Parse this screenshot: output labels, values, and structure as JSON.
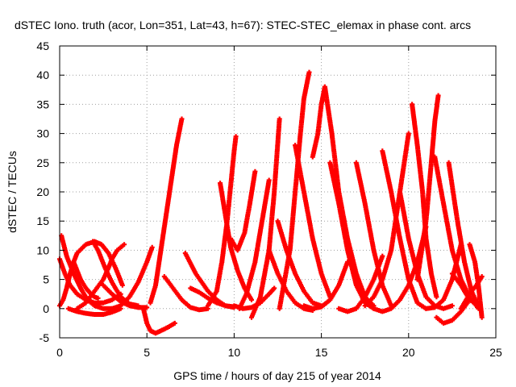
{
  "chart_data": {
    "type": "scatter",
    "title": "dSTEC Iono. truth (acor, Lon=351, Lat=43, h=67): STEC-STEC_elemax in phase cont. arcs",
    "xlabel": "GPS time / hours of day 215 of year 2014",
    "ylabel": "dSTEC  / TECUs",
    "xlim": [
      0,
      25
    ],
    "ylim": [
      -5,
      45
    ],
    "x_ticks": [
      0,
      5,
      10,
      15,
      20,
      25
    ],
    "y_ticks": [
      -5,
      0,
      5,
      10,
      15,
      20,
      25,
      30,
      35,
      40,
      45
    ],
    "grid": true,
    "legend": "none",
    "marker": "+",
    "series_color": "#ff0000",
    "series": [
      {
        "x": [
          0.0,
          0.2,
          0.4,
          0.6,
          0.8,
          1.0,
          1.5,
          2.0,
          2.4,
          2.8,
          3.2,
          3.6
        ],
        "y": [
          0.5,
          1.5,
          3.5,
          6.0,
          8.0,
          9.5,
          11.0,
          11.5,
          11.0,
          9.5,
          7.0,
          4.0
        ]
      },
      {
        "x": [
          0.0,
          0.3,
          0.6,
          1.0,
          1.5,
          2.0,
          2.5,
          3.0,
          3.5
        ],
        "y": [
          8.5,
          6.0,
          4.0,
          2.5,
          1.5,
          1.0,
          1.0,
          1.5,
          2.5
        ]
      },
      {
        "x": [
          0.1,
          0.4,
          0.8,
          1.2,
          1.6,
          2.0,
          2.5,
          3.0
        ],
        "y": [
          12.5,
          9.0,
          6.0,
          3.5,
          1.5,
          0.5,
          0.0,
          0.0
        ]
      },
      {
        "x": [
          0.5,
          1.0,
          1.5,
          2.0,
          2.5,
          3.0,
          3.5
        ],
        "y": [
          0.0,
          -0.5,
          -0.8,
          -1.0,
          -1.0,
          -0.6,
          0.0
        ]
      },
      {
        "x": [
          0.8,
          1.0,
          1.2,
          1.5,
          1.8,
          2.0,
          2.2
        ],
        "y": [
          8.0,
          6.5,
          5.0,
          3.5,
          2.5,
          2.0,
          1.8
        ]
      },
      {
        "x": [
          1.0,
          1.5,
          2.0,
          2.5,
          2.8,
          3.0,
          3.3,
          3.7
        ],
        "y": [
          0.0,
          1.0,
          3.0,
          5.0,
          7.0,
          8.5,
          10.0,
          11.0
        ]
      },
      {
        "x": [
          1.9,
          2.2,
          2.6,
          3.0,
          3.5,
          4.0,
          4.5
        ],
        "y": [
          11.5,
          10.0,
          7.0,
          4.5,
          2.0,
          0.8,
          0.5
        ]
      },
      {
        "x": [
          2.5,
          3.0,
          3.5,
          4.0,
          4.5,
          5.0
        ],
        "y": [
          4.0,
          2.5,
          1.2,
          0.5,
          0.2,
          0.2
        ]
      },
      {
        "x": [
          3.0,
          3.5,
          4.0,
          4.5,
          5.0,
          5.3
        ],
        "y": [
          0.0,
          0.5,
          2.0,
          4.5,
          8.0,
          10.5
        ]
      },
      {
        "x": [
          4.8,
          5.0,
          5.2,
          5.5,
          5.8,
          6.2,
          6.6
        ],
        "y": [
          0.0,
          -2.5,
          -3.8,
          -4.2,
          -3.8,
          -3.2,
          -2.5
        ]
      },
      {
        "x": [
          5.2,
          5.5,
          5.8,
          6.1,
          6.4,
          6.7,
          7.0
        ],
        "y": [
          1.0,
          4.0,
          10.0,
          16.0,
          22.0,
          28.0,
          32.5
        ]
      },
      {
        "x": [
          6.0,
          6.5,
          7.0,
          7.5,
          8.0,
          8.5
        ],
        "y": [
          5.5,
          3.5,
          1.5,
          0.2,
          -0.2,
          0.0
        ]
      },
      {
        "x": [
          7.2,
          7.8,
          8.5,
          9.0,
          9.5,
          10.0
        ],
        "y": [
          9.5,
          6.0,
          3.0,
          1.5,
          0.5,
          0.3
        ]
      },
      {
        "x": [
          7.5,
          8.0,
          8.5,
          9.0,
          9.5,
          10.0
        ],
        "y": [
          3.5,
          2.8,
          1.8,
          1.0,
          0.5,
          0.2
        ]
      },
      {
        "x": [
          8.5,
          9.0,
          9.3,
          9.6,
          9.8,
          10.0,
          10.1
        ],
        "y": [
          0.5,
          3.0,
          8.0,
          15.0,
          21.0,
          27.0,
          29.5
        ]
      },
      {
        "x": [
          9.2,
          9.5,
          9.8,
          10.2,
          10.6,
          11.0
        ],
        "y": [
          21.5,
          16.0,
          10.5,
          6.5,
          3.5,
          1.5
        ]
      },
      {
        "x": [
          9.8,
          10.2,
          10.6,
          10.9,
          11.2
        ],
        "y": [
          12.0,
          10.0,
          13.0,
          18.0,
          23.5
        ]
      },
      {
        "x": [
          10.0,
          10.5,
          11.0,
          11.5,
          12.0,
          12.3
        ],
        "y": [
          0.5,
          0.0,
          0.2,
          1.0,
          2.5,
          3.5
        ]
      },
      {
        "x": [
          10.3,
          10.7,
          11.2,
          11.6,
          12.0
        ],
        "y": [
          0.0,
          2.5,
          8.0,
          15.0,
          22.0
        ]
      },
      {
        "x": [
          11.0,
          11.5,
          12.0,
          12.3,
          12.6
        ],
        "y": [
          -1.5,
          2.0,
          10.0,
          20.0,
          32.5
        ]
      },
      {
        "x": [
          12.0,
          12.5,
          13.0,
          13.5,
          14.0,
          14.5
        ],
        "y": [
          10.0,
          6.0,
          3.0,
          1.0,
          0.0,
          -0.3
        ]
      },
      {
        "x": [
          12.5,
          13.0,
          13.5,
          14.0,
          14.5,
          15.0
        ],
        "y": [
          15.0,
          10.0,
          6.0,
          3.0,
          1.0,
          0.5
        ]
      },
      {
        "x": [
          12.6,
          13.2,
          13.5,
          13.8,
          14.0,
          14.3
        ],
        "y": [
          0.0,
          10.0,
          20.0,
          30.0,
          36.0,
          40.5
        ]
      },
      {
        "x": [
          13.5,
          14.0,
          14.5,
          15.0,
          15.5
        ],
        "y": [
          28.0,
          20.0,
          12.0,
          6.0,
          2.0
        ]
      },
      {
        "x": [
          14.0,
          14.5,
          15.0,
          15.5,
          16.0,
          16.5
        ],
        "y": [
          0.5,
          0.0,
          0.3,
          1.5,
          4.0,
          8.0
        ]
      },
      {
        "x": [
          14.5,
          14.8,
          15.0,
          15.2
        ],
        "y": [
          26.0,
          30.0,
          35.0,
          38.0
        ]
      },
      {
        "x": [
          15.2,
          15.6,
          16.0,
          16.5,
          17.0,
          17.5,
          18.0
        ],
        "y": [
          38.0,
          30.0,
          20.0,
          12.0,
          6.0,
          2.0,
          0.5
        ]
      },
      {
        "x": [
          15.5,
          16.0,
          16.5,
          17.0,
          17.5,
          18.0
        ],
        "y": [
          25.0,
          18.0,
          10.0,
          4.0,
          1.0,
          0.0
        ]
      },
      {
        "x": [
          16.0,
          16.5,
          17.0,
          17.5,
          18.0,
          18.5
        ],
        "y": [
          0.0,
          -0.5,
          0.0,
          2.0,
          5.0,
          9.0
        ]
      },
      {
        "x": [
          17.0,
          17.5,
          18.0,
          18.5,
          19.0
        ],
        "y": [
          25.0,
          18.0,
          10.0,
          4.0,
          0.5
        ]
      },
      {
        "x": [
          17.5,
          18.0,
          18.5,
          19.0,
          19.5,
          20.0
        ],
        "y": [
          0.5,
          2.0,
          5.0,
          10.0,
          20.0,
          30.0
        ]
      },
      {
        "x": [
          18.5,
          19.0,
          19.5,
          20.0,
          20.5,
          21.0
        ],
        "y": [
          27.0,
          20.0,
          12.0,
          5.0,
          1.0,
          0.0
        ]
      },
      {
        "x": [
          18.0,
          18.5,
          19.0,
          19.5,
          20.0,
          20.5,
          21.0
        ],
        "y": [
          0.0,
          -0.5,
          0.0,
          1.5,
          4.0,
          8.0,
          14.0
        ]
      },
      {
        "x": [
          19.5,
          20.0,
          20.5,
          21.0,
          21.5,
          22.0,
          22.5
        ],
        "y": [
          20.0,
          12.0,
          6.0,
          2.0,
          0.5,
          0.0,
          0.5
        ]
      },
      {
        "x": [
          20.2,
          20.5,
          20.8,
          21.0,
          21.3,
          21.6
        ],
        "y": [
          35.0,
          28.0,
          20.0,
          12.0,
          6.0,
          2.0
        ]
      },
      {
        "x": [
          20.5,
          21.0,
          21.3,
          21.5,
          21.7
        ],
        "y": [
          5.0,
          15.0,
          25.0,
          32.0,
          36.5
        ]
      },
      {
        "x": [
          21.0,
          21.5,
          22.0,
          22.5,
          23.0
        ],
        "y": [
          0.0,
          0.2,
          1.5,
          5.0,
          11.0
        ]
      },
      {
        "x": [
          21.5,
          22.0,
          22.5,
          23.0,
          23.5,
          24.0
        ],
        "y": [
          26.0,
          18.0,
          10.0,
          5.0,
          2.0,
          0.0
        ]
      },
      {
        "x": [
          21.6,
          22.0,
          22.5,
          23.0,
          23.5
        ],
        "y": [
          -1.5,
          -2.5,
          -2.0,
          -0.5,
          1.5
        ]
      },
      {
        "x": [
          22.3,
          22.8,
          23.2,
          23.6,
          24.0
        ],
        "y": [
          25.0,
          15.0,
          8.0,
          3.0,
          0.5
        ]
      },
      {
        "x": [
          22.5,
          23.0,
          23.5,
          24.0
        ],
        "y": [
          6.0,
          4.0,
          1.5,
          0.5
        ]
      },
      {
        "x": [
          23.0,
          23.5,
          24.0,
          24.2
        ],
        "y": [
          0.0,
          2.5,
          4.5,
          5.5
        ]
      },
      {
        "x": [
          23.5,
          23.8,
          24.0,
          24.2
        ],
        "y": [
          11.0,
          8.0,
          4.0,
          -1.5
        ]
      }
    ]
  }
}
